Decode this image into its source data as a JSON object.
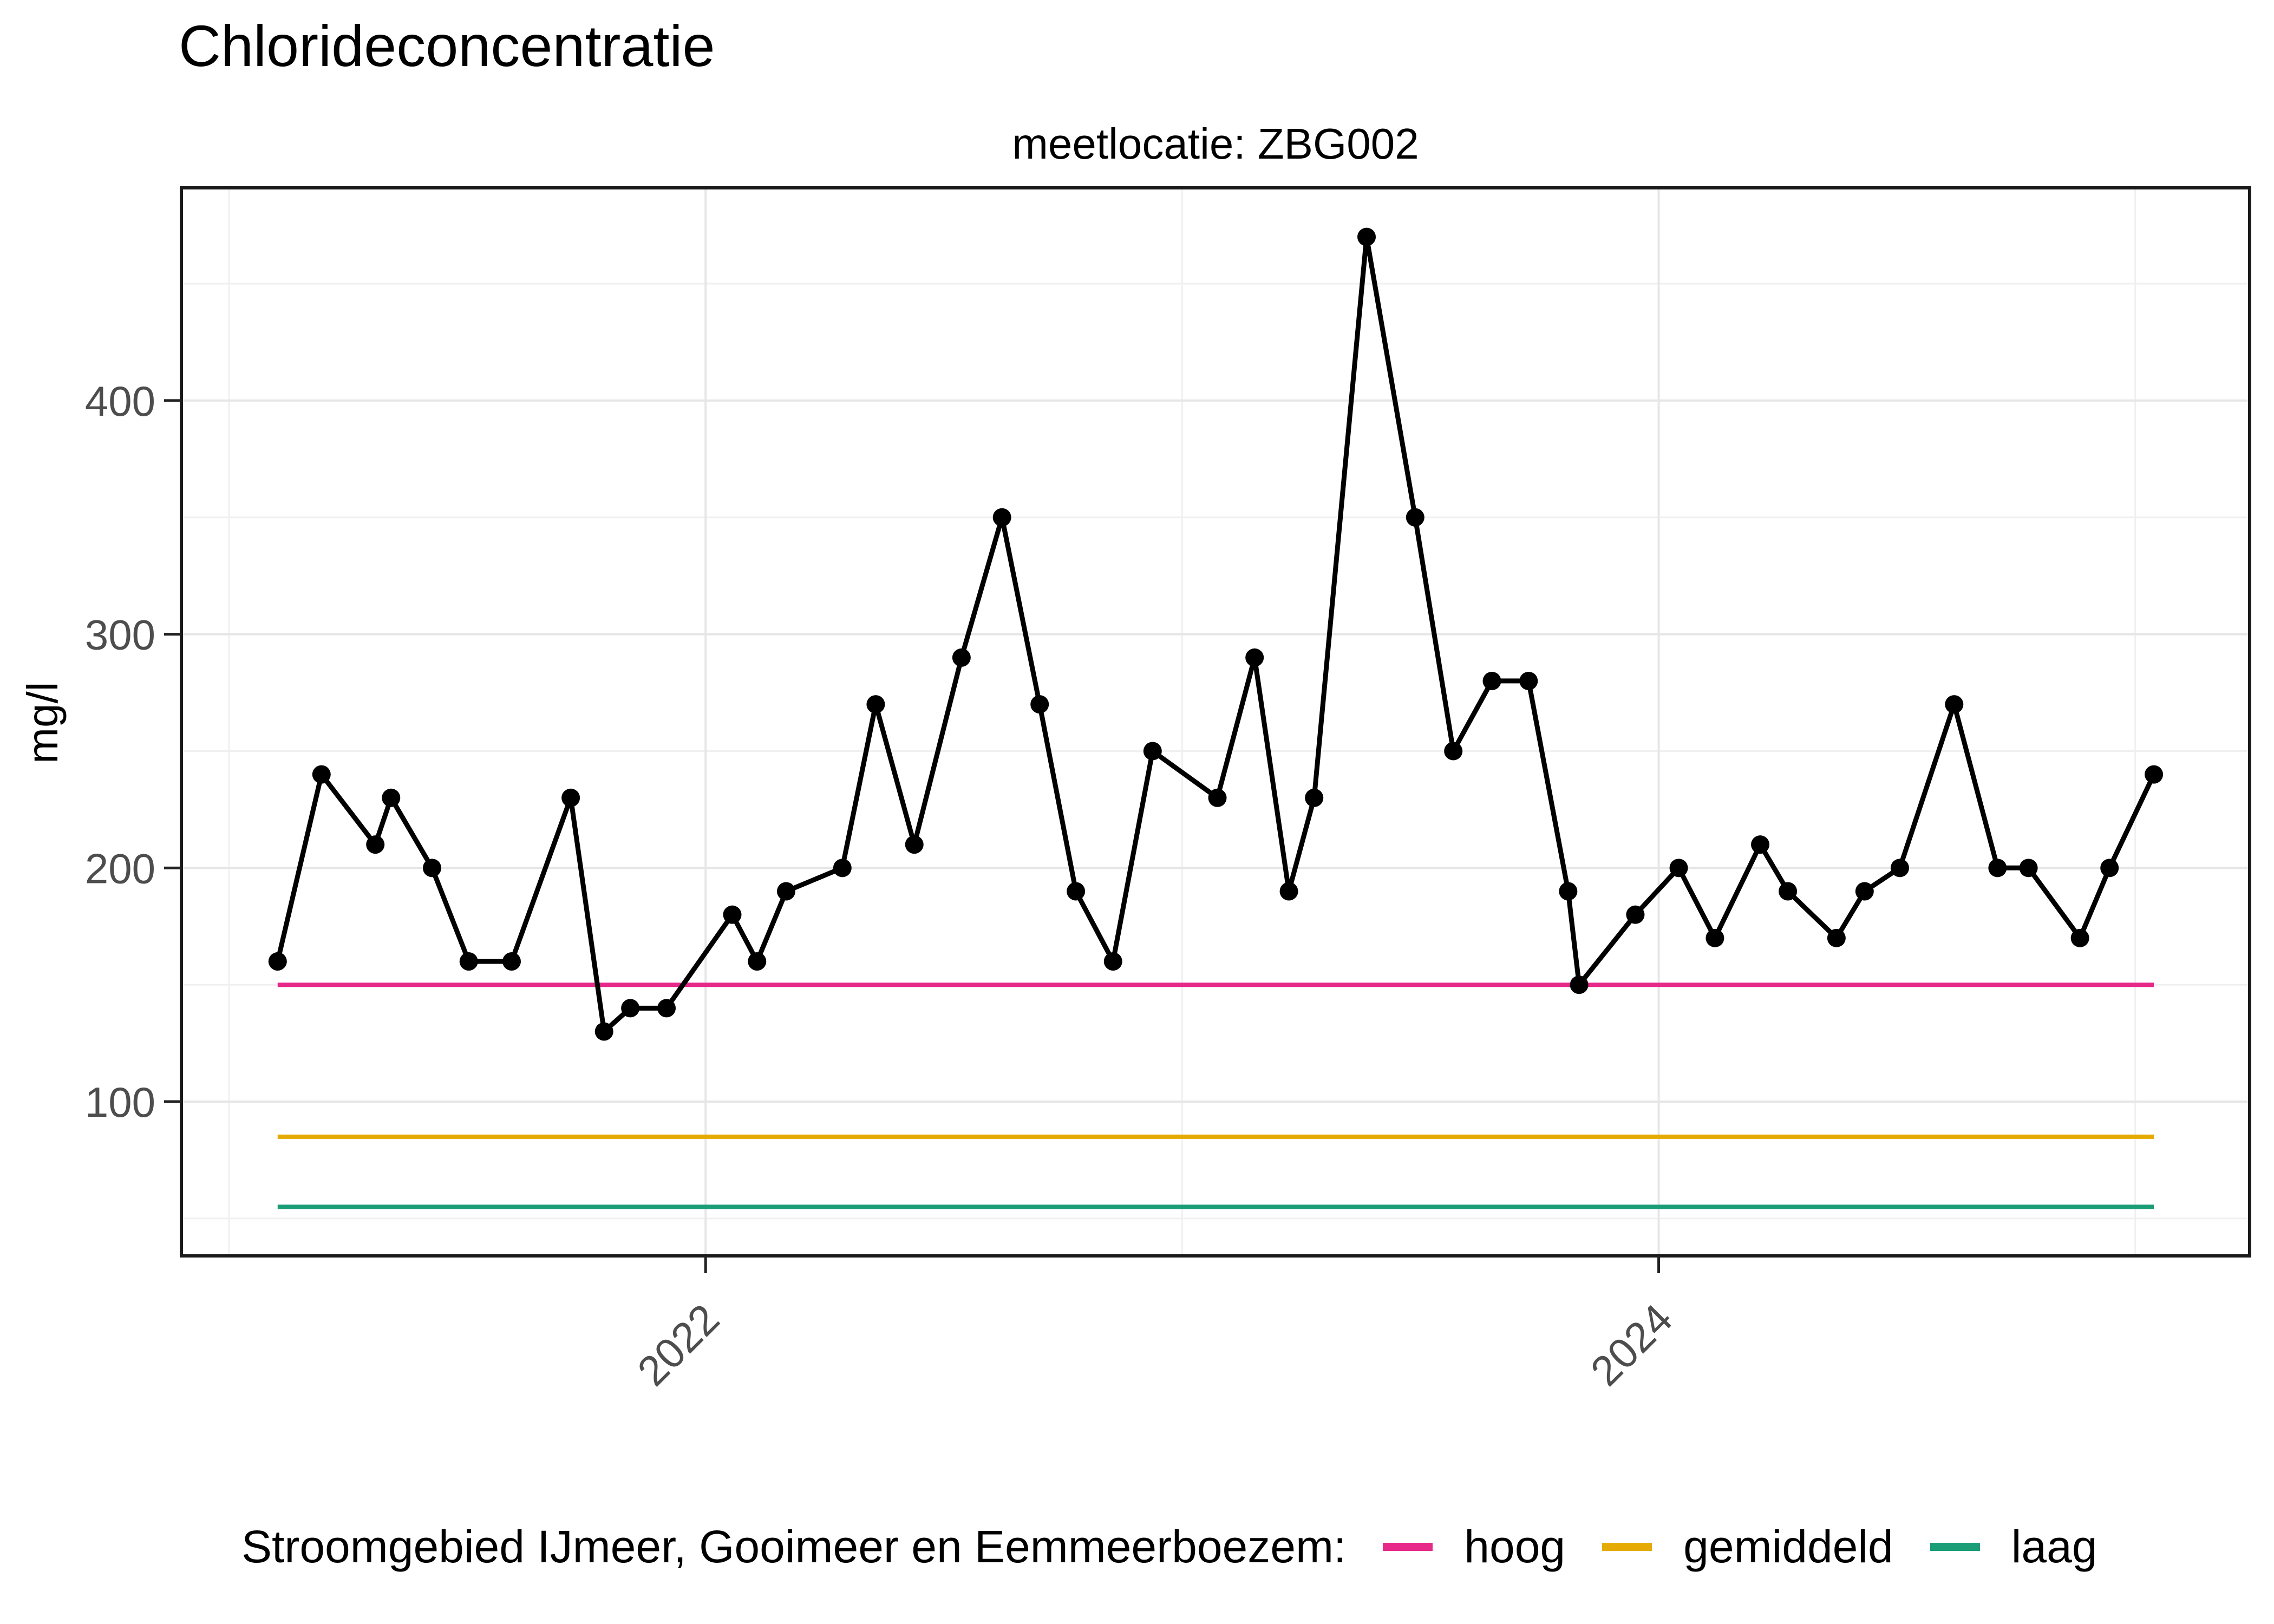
{
  "chart_data": {
    "type": "line",
    "title": "Chlorideconcentratie",
    "subtitle": "meetlocatie: ZBG002",
    "ylabel": "mg/l",
    "xlabel": "",
    "x_unit": "decimal_year",
    "grid": true,
    "legend_position": "bottom",
    "legend_title": "Stroomgebied IJmeer, Gooimeer en Eemmeerboezem:",
    "axes": {
      "y_ticks": [
        100,
        200,
        300,
        400
      ],
      "y_minor_ticks": [
        50,
        150,
        250,
        350,
        450
      ],
      "x_ticks": [
        {
          "label": "2022",
          "value": 2022
        },
        {
          "label": "2024",
          "value": 2024
        }
      ],
      "x_minor_ticks": [
        2021,
        2023,
        2025
      ],
      "xlim": [
        2020.9,
        2025.24
      ],
      "ylim": [
        34,
        491
      ]
    },
    "series": [
      {
        "name": "chlorideconcentratie",
        "color": "#000000",
        "points": [
          [
            2021.102,
            160
          ],
          [
            2021.194,
            240
          ],
          [
            2021.307,
            210
          ],
          [
            2021.34,
            230
          ],
          [
            2021.426,
            200
          ],
          [
            2021.503,
            160
          ],
          [
            2021.593,
            160
          ],
          [
            2021.717,
            230
          ],
          [
            2021.787,
            130
          ],
          [
            2021.842,
            140
          ],
          [
            2021.918,
            140
          ],
          [
            2022.056,
            180
          ],
          [
            2022.108,
            160
          ],
          [
            2022.169,
            190
          ],
          [
            2022.287,
            200
          ],
          [
            2022.357,
            270
          ],
          [
            2022.438,
            210
          ],
          [
            2022.537,
            290
          ],
          [
            2022.622,
            350
          ],
          [
            2022.701,
            270
          ],
          [
            2022.777,
            190
          ],
          [
            2022.855,
            160
          ],
          [
            2022.938,
            250
          ],
          [
            2023.074,
            230
          ],
          [
            2023.152,
            290
          ],
          [
            2023.224,
            190
          ],
          [
            2023.277,
            230
          ],
          [
            2023.387,
            470
          ],
          [
            2023.489,
            350
          ],
          [
            2023.569,
            250
          ],
          [
            2023.65,
            280
          ],
          [
            2023.727,
            280
          ],
          [
            2023.81,
            190
          ],
          [
            2023.833,
            150
          ],
          [
            2023.951,
            180
          ],
          [
            2024.042,
            200
          ],
          [
            2024.118,
            170
          ],
          [
            2024.213,
            210
          ],
          [
            2024.271,
            190
          ],
          [
            2024.373,
            170
          ],
          [
            2024.432,
            190
          ],
          [
            2024.506,
            200
          ],
          [
            2024.62,
            270
          ],
          [
            2024.711,
            200
          ],
          [
            2024.776,
            200
          ],
          [
            2024.884,
            170
          ],
          [
            2024.946,
            200
          ],
          [
            2025.039,
            240
          ]
        ]
      }
    ],
    "reference_lines": [
      {
        "label": "hoog",
        "value": 150,
        "color": "#E7298A"
      },
      {
        "label": "gemiddeld",
        "value": 85,
        "color": "#E6AB02"
      },
      {
        "label": "laag",
        "value": 55,
        "color": "#1B9E77"
      }
    ]
  }
}
